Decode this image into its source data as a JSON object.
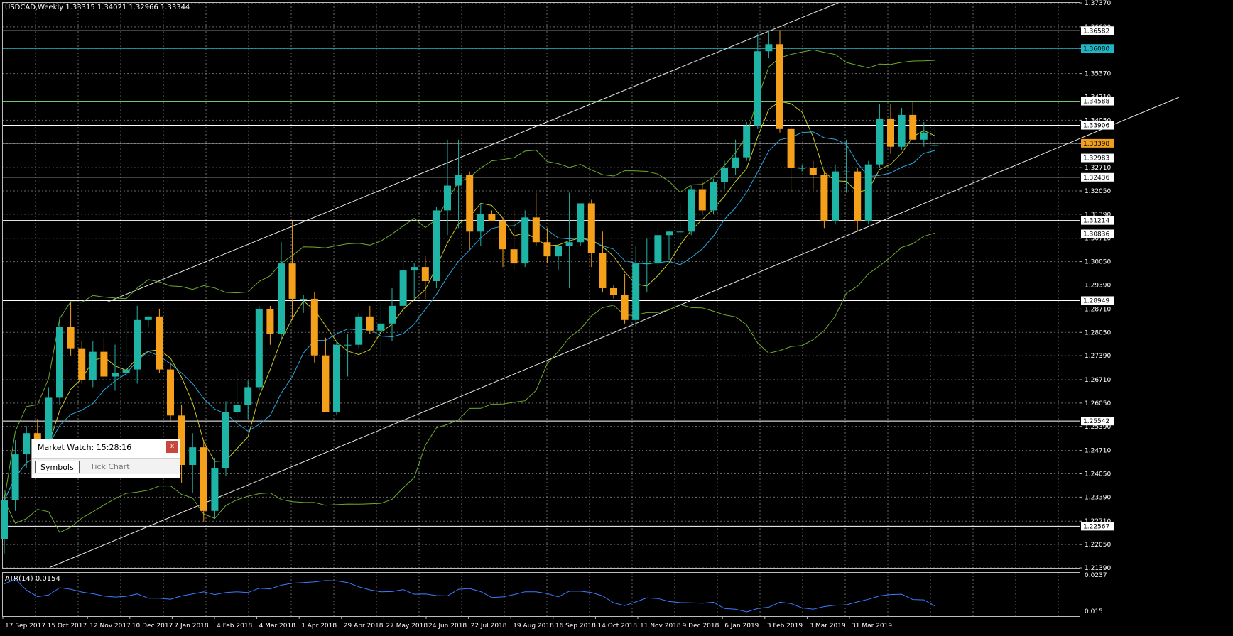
{
  "header": {
    "symbol_info": "USDCAD,Weekly  1.33315 1.34021 1.32966 1.33344"
  },
  "atr": {
    "label": "ATR(14) 0.0154",
    "scale_top": "0.0237",
    "scale_bottom": "0.015",
    "color": "#3a7bff"
  },
  "price_scale": [
    "1.37370",
    "1.36690",
    "1.36080",
    "1.35370",
    "1.34710",
    "1.34050",
    "1.33390",
    "1.32710",
    "1.32050",
    "1.31390",
    "1.30710",
    "1.30050",
    "1.29390",
    "1.28710",
    "1.28050",
    "1.27390",
    "1.26710",
    "1.26050",
    "1.25390",
    "1.24710",
    "1.24050",
    "1.23390",
    "1.22710",
    "1.22050",
    "1.21390"
  ],
  "level_tags": [
    {
      "value": "1.36582",
      "price": 1.36582,
      "color": "#ffffff",
      "text": "#000000"
    },
    {
      "value": "1.36080",
      "price": 1.3608,
      "color": "#1fb5c2",
      "text": "#000000"
    },
    {
      "value": "1.34588",
      "price": 1.34588,
      "color": "#ffffff",
      "text": "#000000"
    },
    {
      "value": "1.33906",
      "price": 1.33906,
      "color": "#ffffff",
      "text": "#000000"
    },
    {
      "value": "1.33398",
      "price": 1.33398,
      "color": "#f0a020",
      "text": "#000000"
    },
    {
      "value": "1.32983",
      "price": 1.32983,
      "color": "#ffffff",
      "text": "#000000"
    },
    {
      "value": "1.32436",
      "price": 1.32436,
      "color": "#ffffff",
      "text": "#000000"
    },
    {
      "value": "1.31214",
      "price": 1.31214,
      "color": "#ffffff",
      "text": "#000000"
    },
    {
      "value": "1.30836",
      "price": 1.30836,
      "color": "#ffffff",
      "text": "#000000"
    },
    {
      "value": "1.28949",
      "price": 1.28949,
      "color": "#ffffff",
      "text": "#000000"
    },
    {
      "value": "1.25542",
      "price": 1.25542,
      "color": "#ffffff",
      "text": "#000000"
    },
    {
      "value": "1.22567",
      "price": 1.22567,
      "color": "#ffffff",
      "text": "#000000"
    }
  ],
  "date_labels": [
    "17 Sep 2017",
    "15 Oct 2017",
    "12 Nov 2017",
    "10 Dec 2017",
    "7 Jan 2018",
    "4 Feb 2018",
    "4 Mar 2018",
    "1 Apr 2018",
    "29 Apr 2018",
    "27 May 2018",
    "24 Jun 2018",
    "22 Jul 2018",
    "19 Aug 2018",
    "16 Sep 2018",
    "14 Oct 2018",
    "11 Nov 2018",
    "9 Dec 2018",
    "6 Jan 2019",
    "3 Feb 2019",
    "3 Mar 2019",
    "31 Mar 2019"
  ],
  "colors": {
    "background": "#000000",
    "bull": "#1fb5a6",
    "bear": "#f5a01a",
    "grid": "#6a6a6a",
    "ma_yellow": "#c9c924",
    "ma_blue": "#2aa7e0",
    "bands": "#6eaa2c",
    "channel": "#e8e8e8",
    "support_red": "#e04040"
  },
  "chart_data": {
    "type": "candlestick",
    "symbol": "USDCAD",
    "timeframe": "Weekly",
    "last_ohlc": {
      "open": 1.33315,
      "high": 1.34021,
      "low": 1.32966,
      "close": 1.33344
    },
    "ylim": [
      1.2139,
      1.3737
    ],
    "candles": [
      [
        1.222,
        1.236,
        1.218,
        1.233
      ],
      [
        1.233,
        1.25,
        1.23,
        1.246
      ],
      [
        1.246,
        1.254,
        1.242,
        1.252
      ],
      [
        1.252,
        1.256,
        1.245,
        1.25
      ],
      [
        1.25,
        1.265,
        1.248,
        1.262
      ],
      [
        1.262,
        1.285,
        1.26,
        1.282
      ],
      [
        1.282,
        1.289,
        1.274,
        1.276
      ],
      [
        1.276,
        1.278,
        1.266,
        1.267
      ],
      [
        1.267,
        1.278,
        1.265,
        1.275
      ],
      [
        1.275,
        1.279,
        1.268,
        1.268
      ],
      [
        1.268,
        1.277,
        1.264,
        1.269
      ],
      [
        1.269,
        1.285,
        1.268,
        1.27
      ],
      [
        1.27,
        1.288,
        1.266,
        1.284
      ],
      [
        1.284,
        1.285,
        1.282,
        1.285
      ],
      [
        1.285,
        1.287,
        1.269,
        1.27
      ],
      [
        1.27,
        1.272,
        1.255,
        1.257
      ],
      [
        1.257,
        1.26,
        1.238,
        1.243
      ],
      [
        1.243,
        1.252,
        1.235,
        1.248
      ],
      [
        1.248,
        1.25,
        1.227,
        1.23
      ],
      [
        1.23,
        1.245,
        1.228,
        1.242
      ],
      [
        1.242,
        1.261,
        1.24,
        1.258
      ],
      [
        1.258,
        1.269,
        1.255,
        1.26
      ],
      [
        1.26,
        1.267,
        1.256,
        1.265
      ],
      [
        1.265,
        1.288,
        1.264,
        1.287
      ],
      [
        1.287,
        1.288,
        1.277,
        1.28
      ],
      [
        1.28,
        1.306,
        1.278,
        1.3
      ],
      [
        1.3,
        1.312,
        1.284,
        1.29
      ],
      [
        1.29,
        1.291,
        1.286,
        1.29
      ],
      [
        1.29,
        1.292,
        1.272,
        1.274
      ],
      [
        1.274,
        1.279,
        1.258,
        1.258
      ],
      [
        1.258,
        1.278,
        1.257,
        1.277
      ],
      [
        1.277,
        1.28,
        1.268,
        1.277
      ],
      [
        1.277,
        1.286,
        1.276,
        1.285
      ],
      [
        1.285,
        1.288,
        1.28,
        1.281
      ],
      [
        1.281,
        1.289,
        1.274,
        1.283
      ],
      [
        1.283,
        1.293,
        1.278,
        1.288
      ],
      [
        1.288,
        1.302,
        1.285,
        1.298
      ],
      [
        1.298,
        1.3,
        1.29,
        1.299
      ],
      [
        1.299,
        1.302,
        1.29,
        1.295
      ],
      [
        1.295,
        1.316,
        1.293,
        1.315
      ],
      [
        1.315,
        1.335,
        1.308,
        1.322
      ],
      [
        1.322,
        1.335,
        1.31,
        1.325
      ],
      [
        1.325,
        1.326,
        1.304,
        1.309
      ],
      [
        1.309,
        1.317,
        1.305,
        1.314
      ],
      [
        1.314,
        1.315,
        1.312,
        1.312
      ],
      [
        1.312,
        1.313,
        1.299,
        1.304
      ],
      [
        1.304,
        1.315,
        1.298,
        1.3
      ],
      [
        1.3,
        1.315,
        1.299,
        1.313
      ],
      [
        1.313,
        1.32,
        1.305,
        1.306
      ],
      [
        1.306,
        1.31,
        1.3,
        1.302
      ],
      [
        1.302,
        1.305,
        1.298,
        1.305
      ],
      [
        1.305,
        1.32,
        1.293,
        1.306
      ],
      [
        1.306,
        1.317,
        1.305,
        1.317
      ],
      [
        1.317,
        1.318,
        1.299,
        1.303
      ],
      [
        1.303,
        1.309,
        1.292,
        1.293
      ],
      [
        1.293,
        1.294,
        1.29,
        1.291
      ],
      [
        1.291,
        1.297,
        1.283,
        1.284
      ],
      [
        1.284,
        1.305,
        1.282,
        1.3
      ],
      [
        1.3,
        1.307,
        1.292,
        1.3
      ],
      [
        1.3,
        1.31,
        1.298,
        1.308
      ],
      [
        1.308,
        1.309,
        1.301,
        1.309
      ],
      [
        1.309,
        1.317,
        1.304,
        1.309
      ],
      [
        1.309,
        1.322,
        1.308,
        1.321
      ],
      [
        1.321,
        1.323,
        1.314,
        1.315
      ],
      [
        1.315,
        1.324,
        1.314,
        1.323
      ],
      [
        1.323,
        1.329,
        1.321,
        1.327
      ],
      [
        1.327,
        1.335,
        1.325,
        1.33
      ],
      [
        1.33,
        1.34,
        1.329,
        1.339
      ],
      [
        1.339,
        1.365,
        1.338,
        1.36
      ],
      [
        1.36,
        1.366,
        1.358,
        1.362
      ],
      [
        1.362,
        1.366,
        1.337,
        1.338
      ],
      [
        1.338,
        1.339,
        1.32,
        1.327
      ],
      [
        1.327,
        1.328,
        1.326,
        1.327
      ],
      [
        1.327,
        1.329,
        1.321,
        1.325
      ],
      [
        1.325,
        1.326,
        1.31,
        1.312
      ],
      [
        1.312,
        1.328,
        1.311,
        1.326
      ],
      [
        1.326,
        1.335,
        1.32,
        1.326
      ],
      [
        1.326,
        1.327,
        1.309,
        1.312
      ],
      [
        1.312,
        1.329,
        1.311,
        1.328
      ],
      [
        1.328,
        1.345,
        1.327,
        1.341
      ],
      [
        1.341,
        1.345,
        1.331,
        1.333
      ],
      [
        1.333,
        1.344,
        1.332,
        1.342
      ],
      [
        1.342,
        1.346,
        1.335,
        1.335
      ],
      [
        1.335,
        1.34,
        1.333,
        1.337
      ],
      [
        1.33315,
        1.34021,
        1.32966,
        1.33344
      ]
    ]
  },
  "market_watch": {
    "title": "Market Watch: 15:28:16",
    "close_label": "x",
    "tab_symbols": "Symbols",
    "tab_tick_chart": "Tick Chart"
  }
}
